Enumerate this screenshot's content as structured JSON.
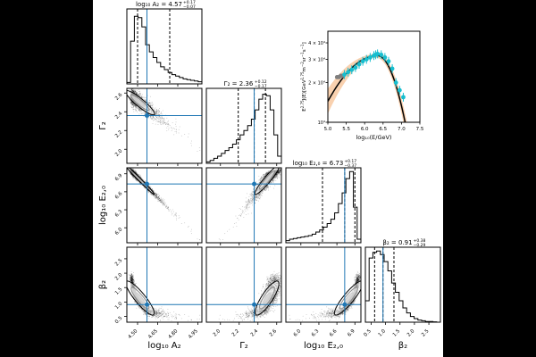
{
  "chart_data": {
    "type": "corner",
    "parameters": [
      {
        "key": "A",
        "axis_label": "log₁₀ A₂",
        "title": {
          "label": "log₁₀ A₂",
          "value": "4.57",
          "plus": "+0.17",
          "minus": "−0.07"
        },
        "range": [
          4.42,
          4.98
        ],
        "ticks": [
          "4.50",
          "4.65",
          "4.80",
          "4.95"
        ],
        "tick_values": [
          4.5,
          4.65,
          4.8,
          4.95
        ],
        "quantiles": [
          4.5,
          4.57,
          4.74
        ],
        "truth": 4.57,
        "hist": [
          0.02,
          0.6,
          0.95,
          0.93,
          0.8,
          0.55,
          0.45,
          0.37,
          0.3,
          0.24,
          0.2,
          0.16,
          0.13,
          0.11,
          0.09,
          0.07,
          0.06,
          0.05,
          0.04,
          0.03
        ]
      },
      {
        "key": "G",
        "axis_label": "Γ₂",
        "title": {
          "label": "Γ₂",
          "value": "2.36",
          "plus": "+0.12",
          "minus": "−0.17"
        },
        "range": [
          1.85,
          2.65
        ],
        "ticks": [
          "2.0",
          "2.2",
          "2.4",
          "2.6"
        ],
        "tick_values": [
          2.0,
          2.2,
          2.4,
          2.6
        ],
        "quantiles": [
          2.19,
          2.36,
          2.48
        ],
        "truth": 2.36,
        "hist": [
          0.02,
          0.04,
          0.07,
          0.1,
          0.14,
          0.18,
          0.22,
          0.27,
          0.33,
          0.4,
          0.46,
          0.53,
          0.62,
          0.75,
          0.9,
          0.97,
          0.95,
          0.75,
          0.4,
          0.1
        ]
      },
      {
        "key": "E",
        "axis_label": "log₁₀ E₂,₀",
        "title": {
          "label": "log₁₀ E₂,₀",
          "value": "6.73",
          "plus": "+0.17",
          "minus": "−0.37"
        },
        "range": [
          5.75,
          7.0
        ],
        "ticks": [
          "6.0",
          "6.3",
          "6.6",
          "6.9"
        ],
        "tick_values": [
          6.0,
          6.3,
          6.6,
          6.9
        ],
        "quantiles": [
          6.36,
          6.73,
          6.9
        ],
        "truth": 6.73,
        "hist": [
          0.03,
          0.05,
          0.06,
          0.07,
          0.08,
          0.09,
          0.1,
          0.12,
          0.15,
          0.18,
          0.22,
          0.27,
          0.33,
          0.42,
          0.55,
          0.7,
          0.9,
          1.0,
          0.5,
          0.05
        ]
      },
      {
        "key": "B",
        "axis_label": "β₂",
        "title": {
          "label": "β₂",
          "value": "0.91",
          "plus": "+0.38",
          "minus": "−0.29"
        },
        "range": [
          0.3,
          2.9
        ],
        "ticks": [
          "0.5",
          "1.0",
          "1.5",
          "2.0",
          "2.5"
        ],
        "tick_values": [
          0.5,
          1.0,
          1.5,
          2.0,
          2.5
        ],
        "quantiles": [
          0.62,
          0.91,
          1.29
        ],
        "truth": 0.91,
        "hist": [
          0.3,
          0.9,
          0.98,
          1.0,
          0.95,
          0.85,
          0.72,
          0.55,
          0.42,
          0.3,
          0.2,
          0.13,
          0.08,
          0.05,
          0.03,
          0.02,
          0.01,
          0.01,
          0.005,
          0.0
        ]
      }
    ],
    "truth_color": "#1f77b4",
    "inset": {
      "type": "line+scatter",
      "xlabel": "log₁₀(E/GeV)",
      "ylabel_parts": {
        "main": "E",
        "sup1": "2.75",
        "mid": "J(E)[GeV",
        "sup2": "1.75",
        "m": "m",
        "sup3": "−2",
        "sr": "sr",
        "sup4": "−1",
        "s": "s",
        "sup5": "−1",
        "end": "]"
      },
      "xlim": [
        5.0,
        7.5
      ],
      "ylim": [
        10000,
        49000
      ],
      "yscale": "log",
      "xticks": [
        "5.0",
        "5.5",
        "6.0",
        "6.5",
        "7.0",
        "7.5"
      ],
      "xtick_values": [
        5.0,
        5.5,
        6.0,
        6.5,
        7.0,
        7.5
      ],
      "yticks": [
        {
          "label": "10⁴",
          "value": 10000
        },
        {
          "label": "2 × 10⁴",
          "value": 20000
        },
        {
          "label": "3 × 10⁴",
          "value": 30000
        },
        {
          "label": "4 × 10⁴",
          "value": 40000
        }
      ],
      "data_cyan": {
        "color": "#17becf",
        "x": [
          5.45,
          5.55,
          5.65,
          5.75,
          5.85,
          5.95,
          6.05,
          6.15,
          6.25,
          6.3,
          6.35,
          6.45,
          6.55,
          6.65,
          6.75,
          6.85,
          6.95,
          7.05
        ],
        "y": [
          23000,
          24000,
          25000,
          26000,
          27500,
          29000,
          30000,
          31000,
          32000,
          32500,
          33000,
          32500,
          31000,
          29000,
          25500,
          20000,
          17500,
          15500
        ]
      },
      "data_gray": {
        "color": "#7f7f7f",
        "x": [
          5.25,
          5.3,
          5.35,
          5.4
        ],
        "y": [
          22000,
          22000,
          22500,
          22500
        ]
      },
      "model": {
        "peak_x": 6.35,
        "peak_y": 32000,
        "curv_left": 0.19,
        "curv_right": 0.9
      },
      "band_color": "#f4a460"
    }
  }
}
